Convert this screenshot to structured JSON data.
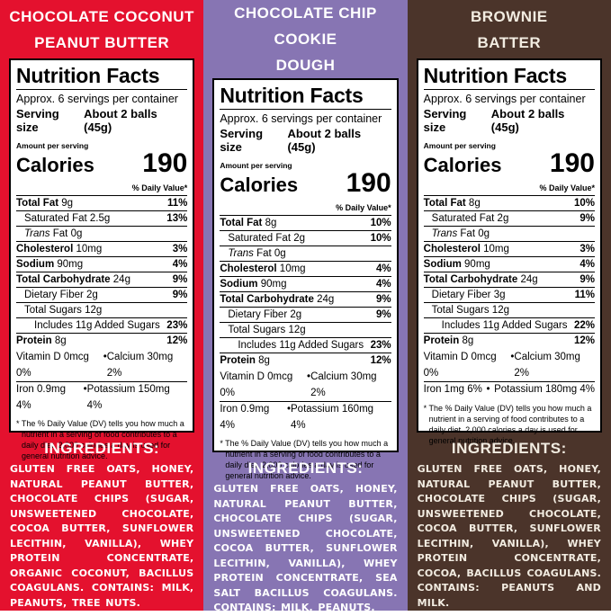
{
  "colors": {
    "red_bg": "#E4112E",
    "purple_bg": "#8775B3",
    "brown_bg": "#4B342A",
    "panel_bg": "#FFFFFF",
    "label_text": "#000000",
    "light_text": "#FFFFFF",
    "cream_text": "#F2ECE1"
  },
  "columns": [
    {
      "flavor": "Chocolate Coconut Peanut Butter",
      "title_line1": "CHOCOLATE COCONUT",
      "title_line2": "PEANUT BUTTER",
      "label": {
        "title": "Nutrition Facts",
        "servings": "Approx. 6 servings per container",
        "serving_size_label": "Serving size",
        "serving_size_value": "About 2 balls (45g)",
        "amount_per_serving": "Amount per serving",
        "calories_label": "Calories",
        "calories_value": "190",
        "daily_value_header": "% Daily Value*",
        "rows": [
          {
            "name": "Total Fat",
            "amount": "9g",
            "dv": "11%"
          },
          {
            "name": "Saturated Fat",
            "amount": "2.5g",
            "dv": "13%"
          },
          {
            "name_it": "Trans",
            "name": "Fat",
            "amount": "0g",
            "dv": ""
          },
          {
            "name": "Cholesterol",
            "amount": "10mg",
            "dv": "3%"
          },
          {
            "name": "Sodium",
            "amount": "90mg",
            "dv": "4%"
          },
          {
            "name": "Total Carbohydrate",
            "amount": "24g",
            "dv": "9%"
          },
          {
            "name": "Dietary Fiber",
            "amount": "2g",
            "dv": "9%"
          },
          {
            "name": "Total Sugars",
            "amount": "12g",
            "dv": ""
          },
          {
            "name": "Includes 11g Added Sugars",
            "amount": "",
            "dv": "23%"
          },
          {
            "name": "Protein",
            "amount": "8g",
            "dv": "12%"
          }
        ],
        "micros": [
          {
            "left": "Vitamin D 0mcg 0%",
            "bullet": "•",
            "right": "Calcium 30mg 2%"
          },
          {
            "left": "Iron 0.9mg 4%",
            "bullet": "•",
            "right": "Potassium 150mg 4%"
          }
        ],
        "footnote": "* The % Daily Value (DV) tells you how much a nutrient in a serving of food contributes to a daily diet. 2,000 calories a day is used for general nutrition advice."
      },
      "ingredients_heading": "INGREDIENTS:",
      "ingredients": "GLUTEN FREE OATS, HONEY, NATURAL PEANUT BUTTER, CHOCOLATE CHIPS (SUGAR, UNSWEETENED CHOCOLATE, COCOA BUTTER, SUNFLOWER LECITHIN, VANILLA), WHEY PROTEIN CONCENTRATE, ORGANIC COCONUT, BACILLUS COAGULANS. CONTAINS: MILK, PEANUTS, TREE NUTS."
    },
    {
      "flavor": "Chocolate Chip Cookie Dough",
      "title_line1": "CHOCOLATE CHIP COOKIE",
      "title_line2": "DOUGH",
      "label": {
        "title": "Nutrition Facts",
        "servings": "Approx. 6 servings per container",
        "serving_size_label": "Serving size",
        "serving_size_value": "About 2 balls (45g)",
        "amount_per_serving": "Amount per serving",
        "calories_label": "Calories",
        "calories_value": "190",
        "daily_value_header": "% Daily Value*",
        "rows": [
          {
            "name": "Total Fat",
            "amount": "8g",
            "dv": "10%"
          },
          {
            "name": "Saturated Fat",
            "amount": "2g",
            "dv": "10%"
          },
          {
            "name_it": "Trans",
            "name": "Fat",
            "amount": "0g",
            "dv": ""
          },
          {
            "name": "Cholesterol",
            "amount": "10mg",
            "dv": "4%"
          },
          {
            "name": "Sodium",
            "amount": "90mg",
            "dv": "4%"
          },
          {
            "name": "Total Carbohydrate",
            "amount": "24g",
            "dv": "9%"
          },
          {
            "name": "Dietary Fiber",
            "amount": "2g",
            "dv": "9%"
          },
          {
            "name": "Total Sugars",
            "amount": "12g",
            "dv": ""
          },
          {
            "name": "Includes 11g Added Sugars",
            "amount": "",
            "dv": "23%"
          },
          {
            "name": "Protein",
            "amount": "8g",
            "dv": "12%"
          }
        ],
        "micros": [
          {
            "left": "Vitamin D 0mcg 0%",
            "bullet": "•",
            "right": "Calcium 30mg 2%"
          },
          {
            "left": "Iron 0.9mg 4%",
            "bullet": "•",
            "right": "Potassium 160mg 4%"
          }
        ],
        "footnote": "* The % Daily Value (DV) tells you how much a nutrient in a serving of food contributes to a daily diet. 2,000 calories a day is used for general nutrition advice."
      },
      "ingredients_heading": "INGREDIENTS:",
      "ingredients": "GLUTEN FREE OATS, HONEY, NATURAL PEANUT BUTTER, CHOCOLATE CHIPS (SUGAR, UNSWEETENED CHOCOLATE, COCOA BUTTER, SUNFLOWER LECITHIN, VANILLA), WHEY PROTEIN CONCENTRATE, SEA SALT BACILLUS COAGULANS. CONTAINS: MILK, PEANUTS."
    },
    {
      "flavor": "Brownie Batter",
      "title_line1": "BROWNIE",
      "title_line2": "BATTER",
      "label": {
        "title": "Nutrition Facts",
        "servings": "Approx. 6 servings per container",
        "serving_size_label": "Serving size",
        "serving_size_value": "About 2 balls (45g)",
        "amount_per_serving": "Amount per serving",
        "calories_label": "Calories",
        "calories_value": "190",
        "daily_value_header": "% Daily Value*",
        "rows": [
          {
            "name": "Total Fat",
            "amount": "8g",
            "dv": "10%"
          },
          {
            "name": "Saturated Fat",
            "amount": "2g",
            "dv": "9%"
          },
          {
            "name_it": "Trans",
            "name": "Fat",
            "amount": "0g",
            "dv": ""
          },
          {
            "name": "Cholesterol",
            "amount": "10mg",
            "dv": "3%"
          },
          {
            "name": "Sodium",
            "amount": "90mg",
            "dv": "4%"
          },
          {
            "name": "Total Carbohydrate",
            "amount": "24g",
            "dv": "9%"
          },
          {
            "name": "Dietary Fiber",
            "amount": "3g",
            "dv": "11%"
          },
          {
            "name": "Total Sugars",
            "amount": "12g",
            "dv": ""
          },
          {
            "name": "Includes 11g Added Sugars",
            "amount": "",
            "dv": "22%"
          },
          {
            "name": "Protein",
            "amount": "8g",
            "dv": "12%"
          }
        ],
        "micros": [
          {
            "left": "Vitamin D 0mcg 0%",
            "bullet": "•",
            "right": "Calcium 30mg 2%"
          },
          {
            "left": "Iron 1mg 6%",
            "bullet": "•",
            "right": "Potassium 180mg 4%"
          }
        ],
        "footnote": "* The % Daily Value (DV) tells you how much a nutrient in a serving of food contributes to a daily diet. 2,000 calories a day is used for general nutrition advice."
      },
      "ingredients_heading": "INGREDIENTS:",
      "ingredients": "GLUTEN FREE OATS, HONEY, NATURAL PEANUT BUTTER, CHOCOLATE CHIPS (SUGAR, UNSWEETENED CHOCOLATE, COCOA BUTTER, SUNFLOWER LECITHIN, VANILLA), WHEY PROTEIN CONCENTRATE, COCOA, BACILLUS COAGULANS. CONTAINS: PEANUTS AND MILK."
    }
  ]
}
